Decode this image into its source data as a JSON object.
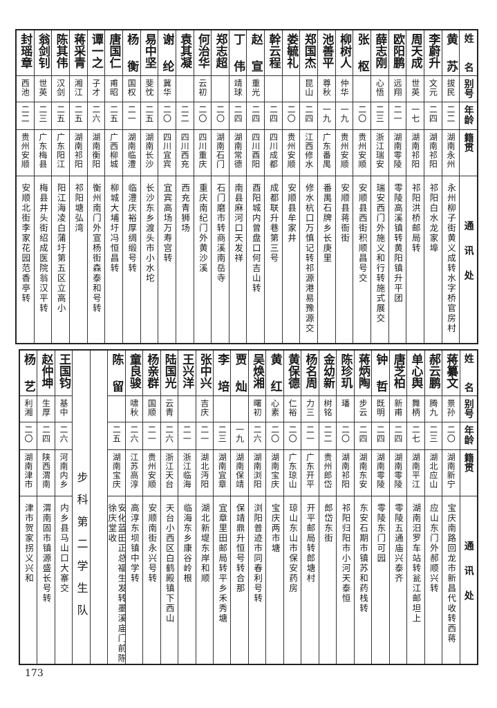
{
  "headers": {
    "name": "姓名",
    "alias": "别号",
    "age": "年龄",
    "origin": "籍贯",
    "address": "通讯处"
  },
  "top_table": {
    "rows": [
      {
        "name": "黄苏",
        "alias": "拔民",
        "age": "二二",
        "origin": "湖南永州",
        "address": "永州柳子街黄义成转水字桥官房村"
      },
      {
        "name": "李蔚升",
        "alias": "文元",
        "age": "二四",
        "origin": "湖南祁阳",
        "address": "祁阳白水龙家埠"
      },
      {
        "name": "周天成",
        "alias": "世英",
        "age": "一七",
        "origin": "湖南祁阳",
        "address": "祁阳洪桥邮局转"
      },
      {
        "name": "欧阳鹏",
        "alias": "远翔",
        "age": "二一",
        "origin": "湖南零陵",
        "address": "零陵高溪镇转黄阳镇升平团"
      },
      {
        "name": "薛志刚",
        "alias": "心悟",
        "age": "二三",
        "origin": "浙江瑞安",
        "address": "瑞安西门外施义和行转施式展交"
      },
      {
        "name": "张枢",
        "alias": "",
        "age": "二〇",
        "origin": "贵州安顺",
        "address": "安顺县西街积顺昌号交"
      },
      {
        "name": "柳树人",
        "alias": "仲华",
        "age": "一九",
        "origin": "贵州安顺",
        "address": "安顺县蒋衙街"
      },
      {
        "name": "池善平",
        "alias": "尊秋",
        "age": "一九",
        "origin": "广东番禺",
        "address": "番禺石牌乡长庚里"
      },
      {
        "name": "郑国杰",
        "alias": "昆山",
        "age": "二四",
        "origin": "江西修水",
        "address": "修水杭口万慎记转祁源港易豫源交"
      },
      {
        "name": "娄毓礼",
        "alias": "",
        "age": "二〇",
        "origin": "贵州安顺",
        "address": "安顺县牟家井"
      },
      {
        "name": "幹云程",
        "alias": "",
        "age": "二四",
        "origin": "四川成都",
        "address": "成都联升巷第三号"
      },
      {
        "name": "赵宣",
        "alias": "重光",
        "age": "二四",
        "origin": "四川酉阳",
        "address": "酉阳城内曾盘口何吉山转"
      },
      {
        "name": "丁伟",
        "alias": "靖球",
        "age": "二四",
        "origin": "湖南常德",
        "address": "南县麻河口天发祥"
      },
      {
        "name": "郑志超",
        "alias": "",
        "age": "二〇",
        "origin": "湖南石门",
        "address": "石门磨市转商溪南岳寺"
      },
      {
        "name": "何治华",
        "alias": "云初",
        "age": "二〇",
        "origin": "四川重庆",
        "address": "重庆南纪门外黄沙溪"
      },
      {
        "name": "袁其凝",
        "alias": "",
        "age": "二二",
        "origin": "四川西充",
        "address": "西充青狮场"
      },
      {
        "name": "谢纶",
        "alias": "冀华",
        "age": "二〇",
        "origin": "四川宜宾",
        "address": "宜宾高场万寿宫转"
      },
      {
        "name": "易中坚",
        "alias": "斐忱",
        "age": "二五",
        "origin": "湖南长沙",
        "address": "长沙东乡渡头市小水坨"
      },
      {
        "name": "杨衡",
        "alias": "国权",
        "age": "二一",
        "origin": "湖南临澧",
        "address": "临澧庆裕厚绸缎号转"
      },
      {
        "name": "唐国仁",
        "alias": "甫昭",
        "age": "二五",
        "origin": "广西柳城",
        "address": "柳城大埔圩冯恒昌转"
      },
      {
        "name": "谭一之",
        "alias": "子才",
        "age": "二六",
        "origin": "湖南衡阳",
        "address": "衡州南门外宣杨街森泰和号转"
      },
      {
        "name": "蒋采青",
        "alias": "湘江",
        "age": "二五",
        "origin": "湖南祁阳",
        "address": "祁阳塘弘湾"
      },
      {
        "name": "陈其伟",
        "alias": "汉剑",
        "age": "二五",
        "origin": "广东阳江",
        "address": "阳江海凌白蒲圩第五区立高小"
      },
      {
        "name": "翁剑钊",
        "alias": "世英",
        "age": "二三",
        "origin": "广东梅县",
        "address": "梅县井头街绍成医院翁汉平转"
      },
      {
        "name": "封瑶章",
        "alias": "西池",
        "age": "二二",
        "origin": "贵州安顺",
        "address": "安顺北街李家花园范香亭转"
      }
    ]
  },
  "bottom_table": {
    "unit_label": "步科第二学生队",
    "rows_before_unit": [
      {
        "name": "蒋纂文",
        "alias": "景孙",
        "age": "二〇",
        "origin": "湖南新宁",
        "address": "宝庆南路回龙市新昌代收转西蒋"
      },
      {
        "name": "郝云鹏",
        "alias": "腾九",
        "age": "二三",
        "origin": "湖北应山",
        "address": "应山东门外郝顺兴转"
      },
      {
        "name": "单心舆",
        "alias": "舞柄",
        "age": "二七",
        "origin": "湖南平江",
        "address": "湖南汨罗车站转瓮江邮坦上"
      },
      {
        "name": "唐芝柏",
        "alias": "新甫",
        "age": "二四",
        "origin": "湖南零陵",
        "address": "零陵五通庙兴泰齐"
      },
      {
        "name": "钟哲",
        "alias": "既明",
        "age": "二四",
        "origin": "湖南零陵",
        "address": "零陵东门可园"
      },
      {
        "name": "蒋炳陶",
        "alias": "步云",
        "age": "二四",
        "origin": "湖南东安",
        "address": "东安石期市镇苏和药栈转"
      },
      {
        "name": "陈珍玑",
        "alias": "璠",
        "age": "二〇",
        "origin": "湖南祁阳",
        "address": "祁阳归阳市小河天泰恒"
      },
      {
        "name": "金幼新",
        "alias": "树铭",
        "age": "二二",
        "origin": "贵州郎岱",
        "address": "郎岱东街"
      },
      {
        "name": "杨名周",
        "alias": "力三",
        "age": "二一",
        "origin": "广东开平",
        "address": "开平邮局转郎塘村"
      },
      {
        "name": "黄保德",
        "alias": "仁裕",
        "age": "二〇",
        "origin": "广东琼山",
        "address": "琼山东山市保安药房"
      },
      {
        "name": "黄红",
        "alias": "心素",
        "age": "二〇",
        "origin": "湖南宝庆",
        "address": "宝庆两市塘"
      },
      {
        "name": "吴焕湘",
        "alias": "曙初",
        "age": "二六",
        "origin": "湖南浏阳",
        "address": "浏阳普迹市同春利号转"
      },
      {
        "name": "贾灿",
        "alias": "",
        "age": "一九",
        "origin": "湖南保靖",
        "address": "保靖鼎升恒号转合那"
      },
      {
        "name": "李培",
        "alias": "",
        "age": "二三",
        "origin": "湖南宜章",
        "address": "宜章里田邮局转平乡禾秀塘"
      },
      {
        "name": "张中兴",
        "alias": "吉庆",
        "age": "二一",
        "origin": "湖北沔阳",
        "address": "湖北新堤东岸和顺"
      },
      {
        "name": "王兴洋",
        "alias": "",
        "age": "二一",
        "origin": "浙江临海",
        "address": "临海东乡康谷岭根"
      },
      {
        "name": "陆国光",
        "alias": "云青",
        "age": "二六",
        "origin": "浙江天台",
        "address": "天台小西区白鹤殿镇下西山"
      },
      {
        "name": "杨亲群",
        "alias": "国顺",
        "age": "二一",
        "origin": "贵州安顺",
        "address": "安顺南街永兴号转"
      },
      {
        "name": "童良骏",
        "alias": "啸秋",
        "age": "二六",
        "origin": "江苏高淳",
        "address": "高淳东坝镇中学转"
      },
      {
        "name": "陈留",
        "alias": "",
        "age": "二五",
        "origin": "湖南宝庆",
        "address": "安化蓝田正总福生发转墨溪庙门前陈徐庆堂收"
      }
    ],
    "rows_after_unit": [
      {
        "name": "王国钧",
        "alias": "基中",
        "age": "二六",
        "origin": "河南内乡",
        "address": "内乡县马山口大寨交"
      },
      {
        "name": "赵仲坤",
        "alias": "生厚",
        "age": "二四",
        "origin": "陕西渭南",
        "address": "渭南固市镇源盛长号转"
      },
      {
        "name": "杨艺",
        "alias": "利湘",
        "age": "二〇",
        "origin": "湖南津市",
        "address": "津市贺家拐义兴和"
      }
    ]
  },
  "page_number": "173"
}
